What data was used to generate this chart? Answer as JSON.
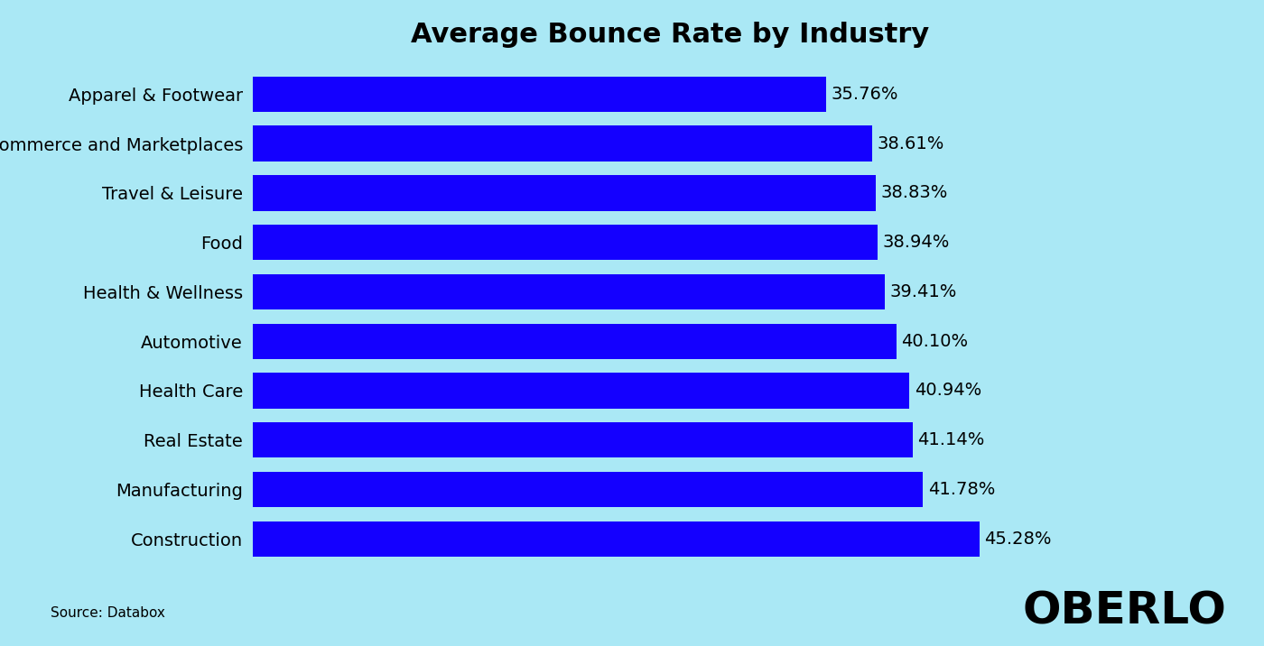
{
  "title": "Average Bounce Rate by Industry",
  "categories": [
    "Apparel & Footwear",
    "eCommerce and Marketplaces",
    "Travel & Leisure",
    "Food",
    "Health & Wellness",
    "Automotive",
    "Health Care",
    "Real Estate",
    "Manufacturing",
    "Construction"
  ],
  "values": [
    35.76,
    38.61,
    38.83,
    38.94,
    39.41,
    40.1,
    40.94,
    41.14,
    41.78,
    45.28
  ],
  "bar_color": "#1400ff",
  "background_color": "#aae8f5",
  "text_color": "#000000",
  "title_fontsize": 22,
  "label_fontsize": 14,
  "value_fontsize": 14,
  "source_text": "Source: Databox",
  "source_fontsize": 11,
  "oberlo_text": "OBERLO",
  "oberlo_fontsize": 36,
  "xlim": [
    0,
    52
  ]
}
